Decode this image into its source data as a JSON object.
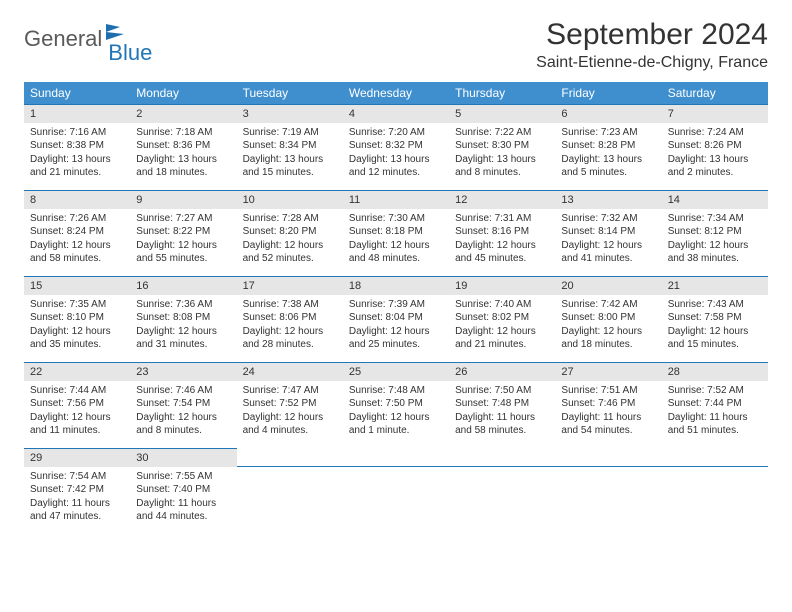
{
  "logo": {
    "part1": "General",
    "part2": "Blue"
  },
  "title": "September 2024",
  "location": "Saint-Etienne-de-Chigny, France",
  "colors": {
    "header_bg": "#3f8fcf",
    "header_text": "#ffffff",
    "daynum_bg": "#e6e6e6",
    "row_border": "#2176b8",
    "logo_gray": "#5a5a5a",
    "logo_blue": "#2176b8",
    "body_text": "#333333",
    "background": "#ffffff"
  },
  "typography": {
    "title_fontsize": 30,
    "location_fontsize": 16,
    "header_fontsize": 12,
    "daynum_fontsize": 11,
    "cell_fontsize": 10,
    "logo_fontsize": 22
  },
  "dow": [
    "Sunday",
    "Monday",
    "Tuesday",
    "Wednesday",
    "Thursday",
    "Friday",
    "Saturday"
  ],
  "weeks": [
    [
      {
        "n": "1",
        "sr": "Sunrise: 7:16 AM",
        "ss": "Sunset: 8:38 PM",
        "dl": "Daylight: 13 hours and 21 minutes."
      },
      {
        "n": "2",
        "sr": "Sunrise: 7:18 AM",
        "ss": "Sunset: 8:36 PM",
        "dl": "Daylight: 13 hours and 18 minutes."
      },
      {
        "n": "3",
        "sr": "Sunrise: 7:19 AM",
        "ss": "Sunset: 8:34 PM",
        "dl": "Daylight: 13 hours and 15 minutes."
      },
      {
        "n": "4",
        "sr": "Sunrise: 7:20 AM",
        "ss": "Sunset: 8:32 PM",
        "dl": "Daylight: 13 hours and 12 minutes."
      },
      {
        "n": "5",
        "sr": "Sunrise: 7:22 AM",
        "ss": "Sunset: 8:30 PM",
        "dl": "Daylight: 13 hours and 8 minutes."
      },
      {
        "n": "6",
        "sr": "Sunrise: 7:23 AM",
        "ss": "Sunset: 8:28 PM",
        "dl": "Daylight: 13 hours and 5 minutes."
      },
      {
        "n": "7",
        "sr": "Sunrise: 7:24 AM",
        "ss": "Sunset: 8:26 PM",
        "dl": "Daylight: 13 hours and 2 minutes."
      }
    ],
    [
      {
        "n": "8",
        "sr": "Sunrise: 7:26 AM",
        "ss": "Sunset: 8:24 PM",
        "dl": "Daylight: 12 hours and 58 minutes."
      },
      {
        "n": "9",
        "sr": "Sunrise: 7:27 AM",
        "ss": "Sunset: 8:22 PM",
        "dl": "Daylight: 12 hours and 55 minutes."
      },
      {
        "n": "10",
        "sr": "Sunrise: 7:28 AM",
        "ss": "Sunset: 8:20 PM",
        "dl": "Daylight: 12 hours and 52 minutes."
      },
      {
        "n": "11",
        "sr": "Sunrise: 7:30 AM",
        "ss": "Sunset: 8:18 PM",
        "dl": "Daylight: 12 hours and 48 minutes."
      },
      {
        "n": "12",
        "sr": "Sunrise: 7:31 AM",
        "ss": "Sunset: 8:16 PM",
        "dl": "Daylight: 12 hours and 45 minutes."
      },
      {
        "n": "13",
        "sr": "Sunrise: 7:32 AM",
        "ss": "Sunset: 8:14 PM",
        "dl": "Daylight: 12 hours and 41 minutes."
      },
      {
        "n": "14",
        "sr": "Sunrise: 7:34 AM",
        "ss": "Sunset: 8:12 PM",
        "dl": "Daylight: 12 hours and 38 minutes."
      }
    ],
    [
      {
        "n": "15",
        "sr": "Sunrise: 7:35 AM",
        "ss": "Sunset: 8:10 PM",
        "dl": "Daylight: 12 hours and 35 minutes."
      },
      {
        "n": "16",
        "sr": "Sunrise: 7:36 AM",
        "ss": "Sunset: 8:08 PM",
        "dl": "Daylight: 12 hours and 31 minutes."
      },
      {
        "n": "17",
        "sr": "Sunrise: 7:38 AM",
        "ss": "Sunset: 8:06 PM",
        "dl": "Daylight: 12 hours and 28 minutes."
      },
      {
        "n": "18",
        "sr": "Sunrise: 7:39 AM",
        "ss": "Sunset: 8:04 PM",
        "dl": "Daylight: 12 hours and 25 minutes."
      },
      {
        "n": "19",
        "sr": "Sunrise: 7:40 AM",
        "ss": "Sunset: 8:02 PM",
        "dl": "Daylight: 12 hours and 21 minutes."
      },
      {
        "n": "20",
        "sr": "Sunrise: 7:42 AM",
        "ss": "Sunset: 8:00 PM",
        "dl": "Daylight: 12 hours and 18 minutes."
      },
      {
        "n": "21",
        "sr": "Sunrise: 7:43 AM",
        "ss": "Sunset: 7:58 PM",
        "dl": "Daylight: 12 hours and 15 minutes."
      }
    ],
    [
      {
        "n": "22",
        "sr": "Sunrise: 7:44 AM",
        "ss": "Sunset: 7:56 PM",
        "dl": "Daylight: 12 hours and 11 minutes."
      },
      {
        "n": "23",
        "sr": "Sunrise: 7:46 AM",
        "ss": "Sunset: 7:54 PM",
        "dl": "Daylight: 12 hours and 8 minutes."
      },
      {
        "n": "24",
        "sr": "Sunrise: 7:47 AM",
        "ss": "Sunset: 7:52 PM",
        "dl": "Daylight: 12 hours and 4 minutes."
      },
      {
        "n": "25",
        "sr": "Sunrise: 7:48 AM",
        "ss": "Sunset: 7:50 PM",
        "dl": "Daylight: 12 hours and 1 minute."
      },
      {
        "n": "26",
        "sr": "Sunrise: 7:50 AM",
        "ss": "Sunset: 7:48 PM",
        "dl": "Daylight: 11 hours and 58 minutes."
      },
      {
        "n": "27",
        "sr": "Sunrise: 7:51 AM",
        "ss": "Sunset: 7:46 PM",
        "dl": "Daylight: 11 hours and 54 minutes."
      },
      {
        "n": "28",
        "sr": "Sunrise: 7:52 AM",
        "ss": "Sunset: 7:44 PM",
        "dl": "Daylight: 11 hours and 51 minutes."
      }
    ],
    [
      {
        "n": "29",
        "sr": "Sunrise: 7:54 AM",
        "ss": "Sunset: 7:42 PM",
        "dl": "Daylight: 11 hours and 47 minutes."
      },
      {
        "n": "30",
        "sr": "Sunrise: 7:55 AM",
        "ss": "Sunset: 7:40 PM",
        "dl": "Daylight: 11 hours and 44 minutes."
      },
      null,
      null,
      null,
      null,
      null
    ]
  ]
}
